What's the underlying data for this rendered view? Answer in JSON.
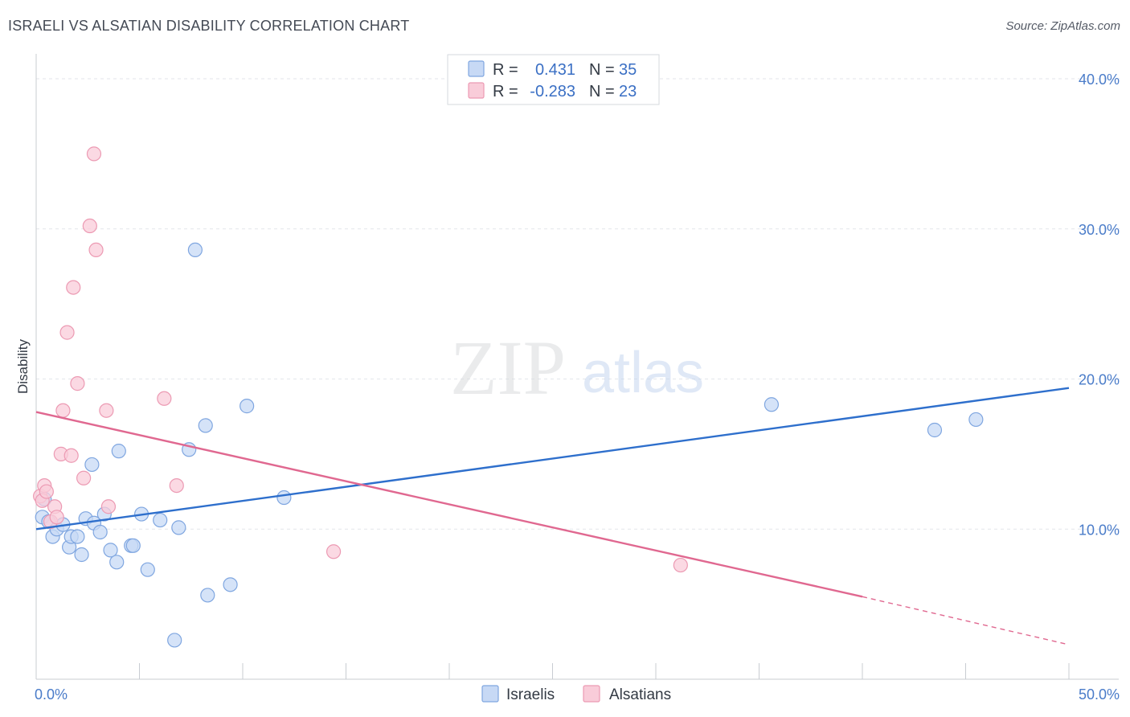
{
  "title": "ISRAELI VS ALSATIAN DISABILITY CORRELATION CHART",
  "source": "Source: ZipAtlas.com",
  "watermark": {
    "zip": "ZIP",
    "atlas": "atlas"
  },
  "colors": {
    "israelis_fill": "#c7d9f5",
    "israelis_stroke": "#7fa6e0",
    "israelis_line": "#2e6fcc",
    "alsatians_fill": "#f9ccd9",
    "alsatians_stroke": "#ec9ab3",
    "alsatians_line": "#e06890",
    "tick": "#4a7cc9",
    "grid": "#e3e6ea"
  },
  "legend": {
    "rows": [
      {
        "r_label": "R =",
        "r_value": "0.431",
        "n_label": "N =",
        "n_value": "35"
      },
      {
        "r_label": "R =",
        "r_value": "-0.283",
        "n_label": "N =",
        "n_value": "23"
      }
    ]
  },
  "chart_data": {
    "type": "scatter",
    "ylabel": "Disability",
    "xlim": [
      0,
      50
    ],
    "ylim": [
      0,
      41.5
    ],
    "x_tick_labels": [
      {
        "value": 0,
        "label": "0.0%"
      },
      {
        "value": 50,
        "label": "50.0%"
      }
    ],
    "y_tick_labels": [
      {
        "value": 10,
        "label": "10.0%"
      },
      {
        "value": 20,
        "label": "20.0%"
      },
      {
        "value": 30,
        "label": "30.0%"
      },
      {
        "value": 40,
        "label": "40.0%"
      }
    ],
    "series": [
      {
        "name": "Israelis",
        "points": [
          [
            0.3,
            10.8
          ],
          [
            0.4,
            12.0
          ],
          [
            0.6,
            10.5
          ],
          [
            0.8,
            9.5
          ],
          [
            1.0,
            10.0
          ],
          [
            1.3,
            10.3
          ],
          [
            1.6,
            8.8
          ],
          [
            1.7,
            9.5
          ],
          [
            2.0,
            9.5
          ],
          [
            2.2,
            8.3
          ],
          [
            2.4,
            10.7
          ],
          [
            2.7,
            14.3
          ],
          [
            2.8,
            10.4
          ],
          [
            3.1,
            9.8
          ],
          [
            3.3,
            11.0
          ],
          [
            3.6,
            8.6
          ],
          [
            3.9,
            7.8
          ],
          [
            4.0,
            15.2
          ],
          [
            4.6,
            8.9
          ],
          [
            4.7,
            8.9
          ],
          [
            5.1,
            11.0
          ],
          [
            5.4,
            7.3
          ],
          [
            6.0,
            10.6
          ],
          [
            6.7,
            2.6
          ],
          [
            6.9,
            10.1
          ],
          [
            7.4,
            15.3
          ],
          [
            7.7,
            28.6
          ],
          [
            8.2,
            16.9
          ],
          [
            8.3,
            5.6
          ],
          [
            9.4,
            6.3
          ],
          [
            10.2,
            18.2
          ],
          [
            12.0,
            12.1
          ],
          [
            35.6,
            18.3
          ],
          [
            43.5,
            16.6
          ],
          [
            45.5,
            17.3
          ]
        ],
        "trend": {
          "x": [
            0,
            50
          ],
          "y": [
            10.0,
            19.4
          ]
        }
      },
      {
        "name": "Alsatians",
        "points": [
          [
            0.2,
            12.2
          ],
          [
            0.3,
            11.9
          ],
          [
            0.4,
            12.9
          ],
          [
            0.5,
            12.5
          ],
          [
            0.7,
            10.5
          ],
          [
            0.9,
            11.5
          ],
          [
            1.0,
            10.8
          ],
          [
            1.2,
            15.0
          ],
          [
            1.3,
            17.9
          ],
          [
            1.5,
            23.1
          ],
          [
            1.7,
            14.9
          ],
          [
            1.8,
            26.1
          ],
          [
            2.0,
            19.7
          ],
          [
            2.3,
            13.4
          ],
          [
            2.6,
            30.2
          ],
          [
            2.8,
            35.0
          ],
          [
            2.9,
            28.6
          ],
          [
            3.4,
            17.9
          ],
          [
            3.5,
            11.5
          ],
          [
            6.2,
            18.7
          ],
          [
            6.8,
            12.9
          ],
          [
            14.4,
            8.5
          ],
          [
            31.2,
            7.6
          ]
        ],
        "trend": {
          "x": [
            0,
            40
          ],
          "y": [
            17.8,
            5.5
          ]
        },
        "trend_dashed": {
          "x": [
            40,
            50
          ],
          "y": [
            5.5,
            2.3
          ]
        }
      }
    ]
  },
  "bottom_legend": [
    "Israelis",
    "Alsatians"
  ]
}
